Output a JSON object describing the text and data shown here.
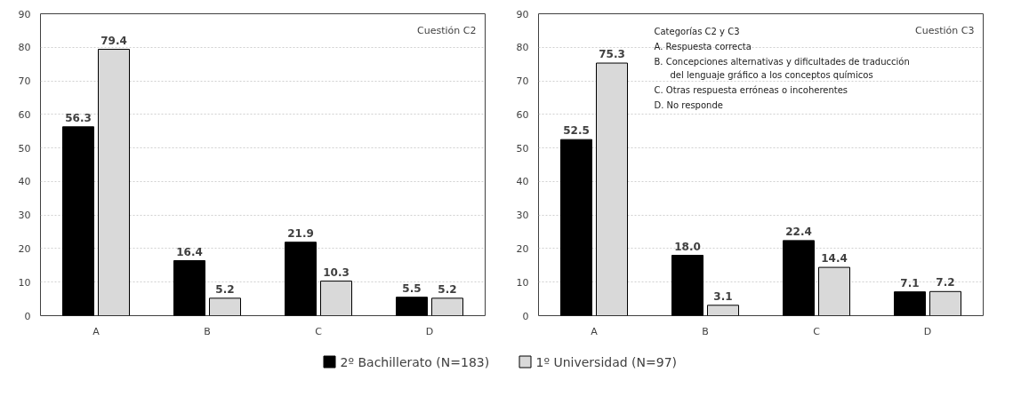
{
  "chart_data": [
    {
      "type": "bar",
      "categories": [
        "A",
        "B",
        "C",
        "D"
      ],
      "series": [
        {
          "name": "2º Bachillerato (N=183)",
          "color": "#000000",
          "values": [
            56.3,
            16.4,
            21.9,
            5.5
          ]
        },
        {
          "name": "1º Universidad (N=97)",
          "color": "#d9d9d9",
          "values": [
            79.4,
            5.2,
            10.3,
            5.2
          ]
        }
      ],
      "ylim": [
        0,
        90
      ],
      "yticks": [
        0,
        10,
        20,
        30,
        40,
        50,
        60,
        70,
        80,
        90
      ],
      "grid": "y",
      "data_labels": true,
      "legend": "bottom",
      "annotations": [
        "Cuestión C2"
      ]
    },
    {
      "type": "bar",
      "categories": [
        "A",
        "B",
        "C",
        "D"
      ],
      "series": [
        {
          "color": "#000000",
          "values": [
            52.5,
            18.0,
            22.4,
            7.1
          ]
        },
        {
          "color": "#d9d9d9",
          "values": [
            75.3,
            3.1,
            14.4,
            7.2
          ]
        }
      ],
      "ylim": [
        0,
        90
      ],
      "yticks": [
        0,
        10,
        20,
        30,
        40,
        50,
        60,
        70,
        80,
        90
      ],
      "grid": "y",
      "value_labels": [
        [
          "52.5",
          "18.0",
          "22.4",
          "7.1"
        ],
        [
          "75.3",
          "3.1",
          "14.4",
          "7.2"
        ]
      ],
      "annotations": [
        "Cuestión C3",
        "Categorías C2 y  C3",
        "A.   Respuesta correcta",
        "B.   Concepciones alternativas y dificultades de traducción del lenguaje gráfico a los conceptos químicos",
        "C.   Otras respuesta erróneas o incoherentes",
        "D.   No responde"
      ]
    }
  ]
}
